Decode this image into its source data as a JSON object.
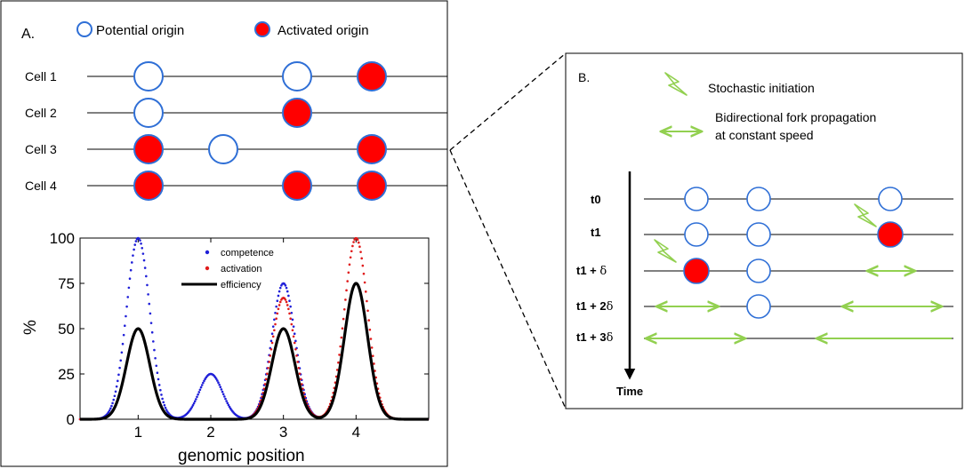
{
  "colors": {
    "origin_stroke": "#2f6fd6",
    "activated_fill": "#ff0000",
    "fork_arrow": "#92d050",
    "competence": "#1f1fd8",
    "activation": "#e01b1b",
    "efficiency": "#000000"
  },
  "panel_a": {
    "label": "A.",
    "legend": {
      "potential": "Potential origin",
      "activated": "Activated origin"
    },
    "cells": [
      {
        "label": "Cell 1",
        "origins": [
          {
            "pos": 1,
            "active": false
          },
          {
            "pos": 3,
            "active": false
          },
          {
            "pos": 4,
            "active": true
          }
        ]
      },
      {
        "label": "Cell 2",
        "origins": [
          {
            "pos": 1,
            "active": false
          },
          {
            "pos": 3,
            "active": true
          }
        ]
      },
      {
        "label": "Cell 3",
        "origins": [
          {
            "pos": 1,
            "active": true
          },
          {
            "pos": 2,
            "active": false
          },
          {
            "pos": 4,
            "active": true
          }
        ]
      },
      {
        "label": "Cell 4",
        "origins": [
          {
            "pos": 1,
            "active": true
          },
          {
            "pos": 3,
            "active": true
          },
          {
            "pos": 4,
            "active": true
          }
        ]
      }
    ]
  },
  "chart_data": {
    "type": "line",
    "xlabel": "genomic position",
    "ylabel": "%",
    "xlim": [
      0.2,
      5.0
    ],
    "ylim": [
      0,
      100
    ],
    "xticks": [
      "1",
      "2",
      "3",
      "4"
    ],
    "yticks": [
      "0",
      "25",
      "50",
      "75",
      "100"
    ],
    "legend_placement": "top-center",
    "peak_sigma": 0.16,
    "series": [
      {
        "name": "competence",
        "style": "dotted",
        "peaks": [
          {
            "x": 1,
            "y": 100
          },
          {
            "x": 2,
            "y": 25
          },
          {
            "x": 3,
            "y": 75
          },
          {
            "x": 4,
            "y": 75
          }
        ]
      },
      {
        "name": "activation",
        "style": "dotted",
        "peaks": [
          {
            "x": 1,
            "y": 50
          },
          {
            "x": 3,
            "y": 67
          },
          {
            "x": 4,
            "y": 100
          }
        ]
      },
      {
        "name": "efficiency",
        "style": "solid",
        "peaks": [
          {
            "x": 1,
            "y": 50
          },
          {
            "x": 3,
            "y": 50
          },
          {
            "x": 4,
            "y": 75
          }
        ]
      }
    ]
  },
  "panel_b": {
    "label": "B.",
    "legend": {
      "initiation": "Stochastic initiation",
      "propagation_line1": "Bidirectional fork propagation",
      "propagation_line2": "at constant speed"
    },
    "time_label": "Time",
    "rows": [
      {
        "label": "t0",
        "suffix": ""
      },
      {
        "label": "t1",
        "suffix": ""
      },
      {
        "label": "t1 + ",
        "suffix": "δ"
      },
      {
        "label": "t1 + 2",
        "suffix": "δ"
      },
      {
        "label": "t1 + 3",
        "suffix": "δ"
      }
    ]
  }
}
